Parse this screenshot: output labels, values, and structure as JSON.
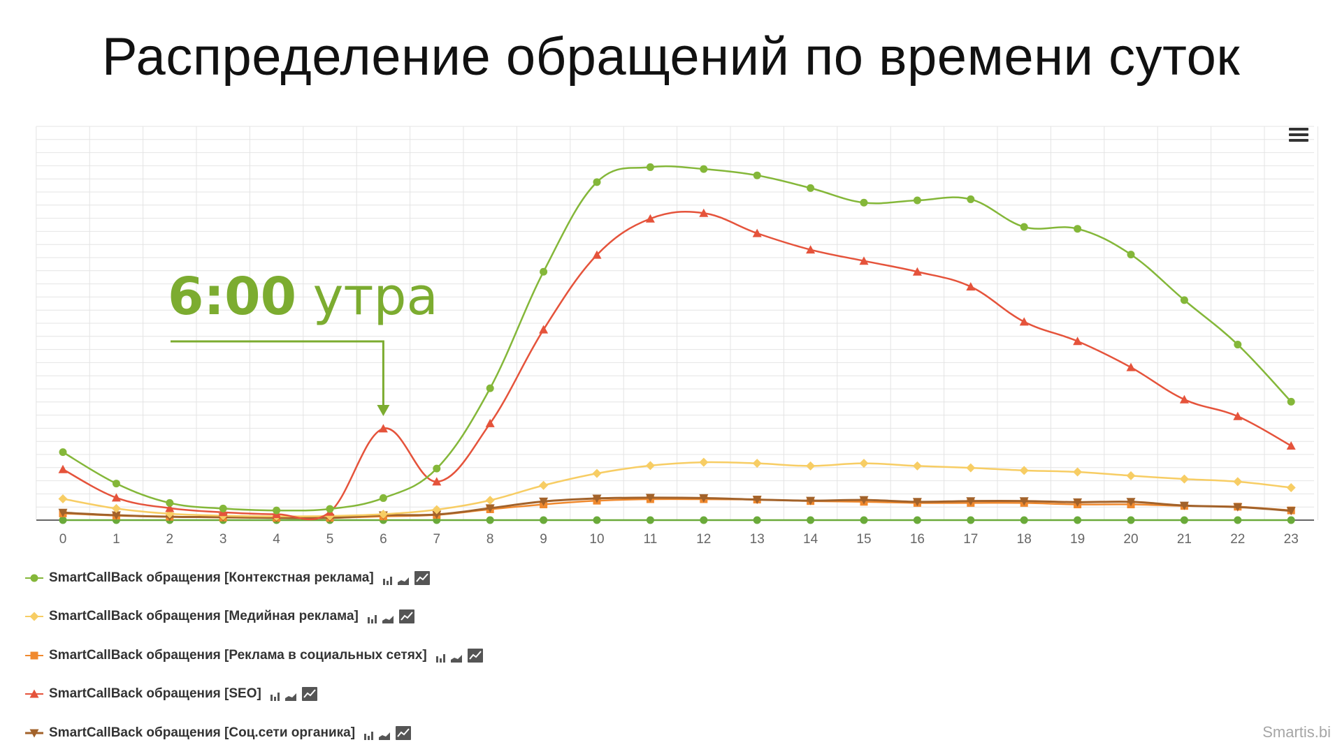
{
  "page": {
    "title": "Распределение обращений по времени суток",
    "brand": "Smartis.bi",
    "annotation": {
      "time": "6:00",
      "text": "утра"
    },
    "menu_icon": "hamburger-menu-icon"
  },
  "colors": {
    "grid": "#e4e4e4",
    "axis": "#333333",
    "annotation": "#7cac30"
  },
  "chart_data": {
    "type": "line",
    "title": "",
    "xlabel": "",
    "ylabel": "",
    "categories": [
      "0",
      "1",
      "2",
      "3",
      "4",
      "5",
      "6",
      "7",
      "8",
      "9",
      "10",
      "11",
      "12",
      "13",
      "14",
      "15",
      "16",
      "17",
      "18",
      "19",
      "20",
      "21",
      "22",
      "23"
    ],
    "ylim": [
      0,
      100
    ],
    "grid": true,
    "legend": "bottom-left",
    "series": [
      {
        "name": "SmartCallBack обращения [Контекстная реклама]",
        "color": "#84b739",
        "marker": "circle",
        "values": [
          18.2,
          9.8,
          4.6,
          3.1,
          2.6,
          3.0,
          5.9,
          13.8,
          35.3,
          66.5,
          90.5,
          94.5,
          94.0,
          92.3,
          88.9,
          85.0,
          85.6,
          85.9,
          78.5,
          78.0,
          71.1,
          58.9,
          47.0,
          31.7
        ]
      },
      {
        "name": "SmartCallBack обращения [Медийная реклама]",
        "color": "#f7cd64",
        "marker": "diamond",
        "values": [
          5.7,
          3.1,
          1.7,
          1.2,
          1.0,
          1.1,
          1.6,
          2.8,
          5.3,
          9.3,
          12.5,
          14.6,
          15.5,
          15.2,
          14.5,
          15.2,
          14.5,
          14.0,
          13.3,
          12.9,
          11.9,
          11.0,
          10.3,
          8.7
        ]
      },
      {
        "name": "SmartCallBack обращения [Реклама в социальных сетях]",
        "color": "#f0892e",
        "marker": "square",
        "values": [
          1.8,
          1.2,
          0.9,
          0.7,
          0.6,
          0.6,
          1.0,
          1.4,
          2.9,
          4.2,
          5.2,
          5.6,
          5.6,
          5.5,
          5.1,
          4.9,
          4.6,
          4.6,
          4.6,
          4.2,
          4.2,
          3.8,
          3.6,
          2.6
        ]
      },
      {
        "name": "SmartCallBack обращения [SEO]",
        "color": "#e5533b",
        "marker": "triangle",
        "values": [
          13.6,
          6.0,
          3.2,
          2.1,
          1.6,
          2.2,
          24.5,
          10.3,
          25.9,
          51.0,
          71.0,
          80.7,
          82.2,
          76.8,
          72.4,
          69.4,
          66.5,
          62.5,
          53.1,
          47.9,
          40.9,
          32.3,
          27.8,
          19.9
        ]
      },
      {
        "name": "SmartCallBack обращения [Соц.сети органика]",
        "color": "#a2622a",
        "marker": "triangle-down",
        "values": [
          2.0,
          1.3,
          0.9,
          0.8,
          0.6,
          0.6,
          1.3,
          1.5,
          3.2,
          5.0,
          5.8,
          6.0,
          5.9,
          5.5,
          5.2,
          5.4,
          4.9,
          5.1,
          5.1,
          4.8,
          4.9,
          3.9,
          3.5,
          2.5
        ]
      },
      {
        "name": "",
        "color": "#6aaa3a",
        "marker": "circle",
        "values": [
          0,
          0,
          0,
          0,
          0,
          0,
          0,
          0,
          0,
          0,
          0,
          0,
          0,
          0,
          0,
          0,
          0,
          0,
          0,
          0,
          0,
          0,
          0,
          0
        ]
      }
    ],
    "legend_icons": [
      "bar-chart-icon",
      "area-chart-icon",
      "line-chart-icon"
    ]
  }
}
